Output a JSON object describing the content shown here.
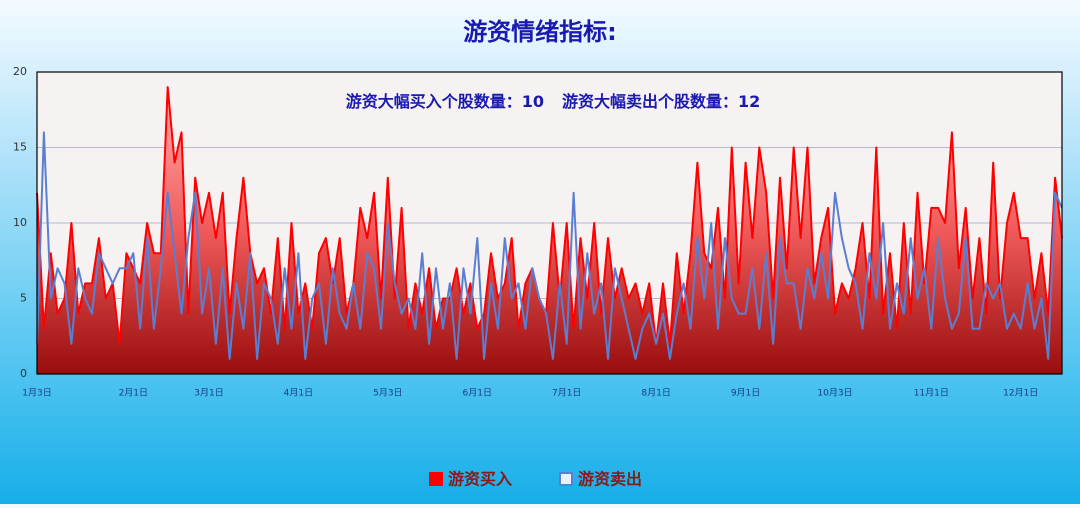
{
  "chart_data": {
    "type": "line",
    "title": "游资情绪指标:",
    "annotations": [
      "游资大幅买入个股数量：10",
      "游资大幅卖出个股数量：12"
    ],
    "categories": [
      "1月3日",
      null,
      null,
      null,
      null,
      null,
      null,
      null,
      null,
      null,
      null,
      null,
      null,
      null,
      "2月1日",
      null,
      null,
      null,
      null,
      null,
      null,
      null,
      null,
      null,
      null,
      "3月1日",
      null,
      null,
      null,
      null,
      null,
      null,
      null,
      null,
      null,
      null,
      null,
      null,
      "4月1日",
      null,
      null,
      null,
      null,
      null,
      null,
      null,
      null,
      null,
      null,
      null,
      null,
      "5月3日",
      null,
      null,
      null,
      null,
      null,
      null,
      null,
      null,
      null,
      null,
      null,
      null,
      "6月1日",
      null,
      null,
      null,
      null,
      null,
      null,
      null,
      null,
      null,
      null,
      null,
      null,
      "7月1日",
      null,
      null,
      null,
      null,
      null,
      null,
      null,
      null,
      null,
      null,
      null,
      null,
      "8月1日",
      null,
      null,
      null,
      null,
      null,
      null,
      null,
      null,
      null,
      null,
      null,
      null,
      "9月1日",
      null,
      null,
      null,
      null,
      null,
      null,
      null,
      null,
      null,
      null,
      null,
      null,
      "10月3日",
      null,
      null,
      null,
      null,
      null,
      null,
      null,
      null,
      null,
      null,
      null,
      null,
      null,
      "11月1日",
      null,
      null,
      null,
      null,
      null,
      null,
      null,
      null,
      null,
      null,
      null,
      null,
      "12月1日",
      null,
      null,
      null,
      null,
      null,
      null
    ],
    "series": [
      {
        "name": "游资买入",
        "color": "#ff0000",
        "style": "area",
        "values": [
          12,
          3,
          8,
          4,
          5,
          10,
          4,
          6,
          6,
          9,
          5,
          6,
          2,
          8,
          7,
          6,
          10,
          8,
          8,
          19,
          14,
          16,
          4,
          13,
          10,
          12,
          9,
          12,
          4,
          9,
          13,
          8,
          6,
          7,
          4,
          9,
          3,
          10,
          4,
          6,
          3,
          8,
          9,
          6,
          9,
          4,
          6,
          11,
          9,
          12,
          5,
          13,
          5,
          11,
          3,
          6,
          4,
          7,
          3,
          5,
          5,
          7,
          4,
          6,
          3,
          4,
          8,
          5,
          6,
          9,
          3,
          6,
          7,
          5,
          4,
          10,
          5,
          10,
          3,
          9,
          5,
          10,
          4,
          9,
          5,
          7,
          5,
          6,
          4,
          6,
          2,
          6,
          2,
          8,
          4,
          8,
          14,
          8,
          7,
          11,
          5,
          15,
          6,
          14,
          9,
          15,
          12,
          5,
          13,
          7,
          15,
          9,
          15,
          6,
          9,
          11,
          4,
          6,
          5,
          7,
          10,
          5,
          15,
          4,
          8,
          3,
          10,
          4,
          12,
          6,
          11,
          11,
          10,
          16,
          7,
          11,
          5,
          9,
          4,
          14,
          5,
          10,
          12,
          9,
          9,
          5,
          8,
          4,
          13,
          9
        ]
      },
      {
        "name": "游资卖出",
        "color": "#5b7fd0",
        "style": "line",
        "values": [
          2,
          16,
          5,
          7,
          6,
          2,
          7,
          5,
          4,
          8,
          7,
          6,
          7,
          7,
          8,
          3,
          9,
          3,
          7,
          12,
          8,
          4,
          9,
          12,
          4,
          7,
          2,
          7,
          1,
          6,
          3,
          8,
          1,
          6,
          5,
          2,
          7,
          3,
          8,
          1,
          5,
          6,
          2,
          7,
          4,
          3,
          6,
          3,
          8,
          7,
          3,
          10,
          6,
          4,
          5,
          3,
          8,
          2,
          7,
          3,
          6,
          1,
          7,
          4,
          9,
          1,
          6,
          3,
          9,
          5,
          6,
          3,
          7,
          5,
          4,
          1,
          6,
          2,
          12,
          3,
          8,
          4,
          6,
          1,
          7,
          5,
          3,
          1,
          3,
          4,
          2,
          4,
          1,
          4,
          6,
          3,
          9,
          5,
          10,
          3,
          9,
          5,
          4,
          4,
          7,
          3,
          8,
          2,
          9,
          6,
          6,
          3,
          7,
          5,
          8,
          5,
          12,
          9,
          7,
          6,
          3,
          8,
          5,
          10,
          3,
          6,
          4,
          9,
          5,
          7,
          3,
          9,
          5,
          3,
          4,
          9,
          3,
          3,
          6,
          5,
          6,
          3,
          4,
          3,
          6,
          3,
          5,
          1,
          12,
          11
        ]
      }
    ],
    "ylim": [
      0,
      20
    ],
    "yticks": [
      0,
      5,
      10,
      15,
      20
    ],
    "grid": true,
    "legend": "bottom"
  }
}
